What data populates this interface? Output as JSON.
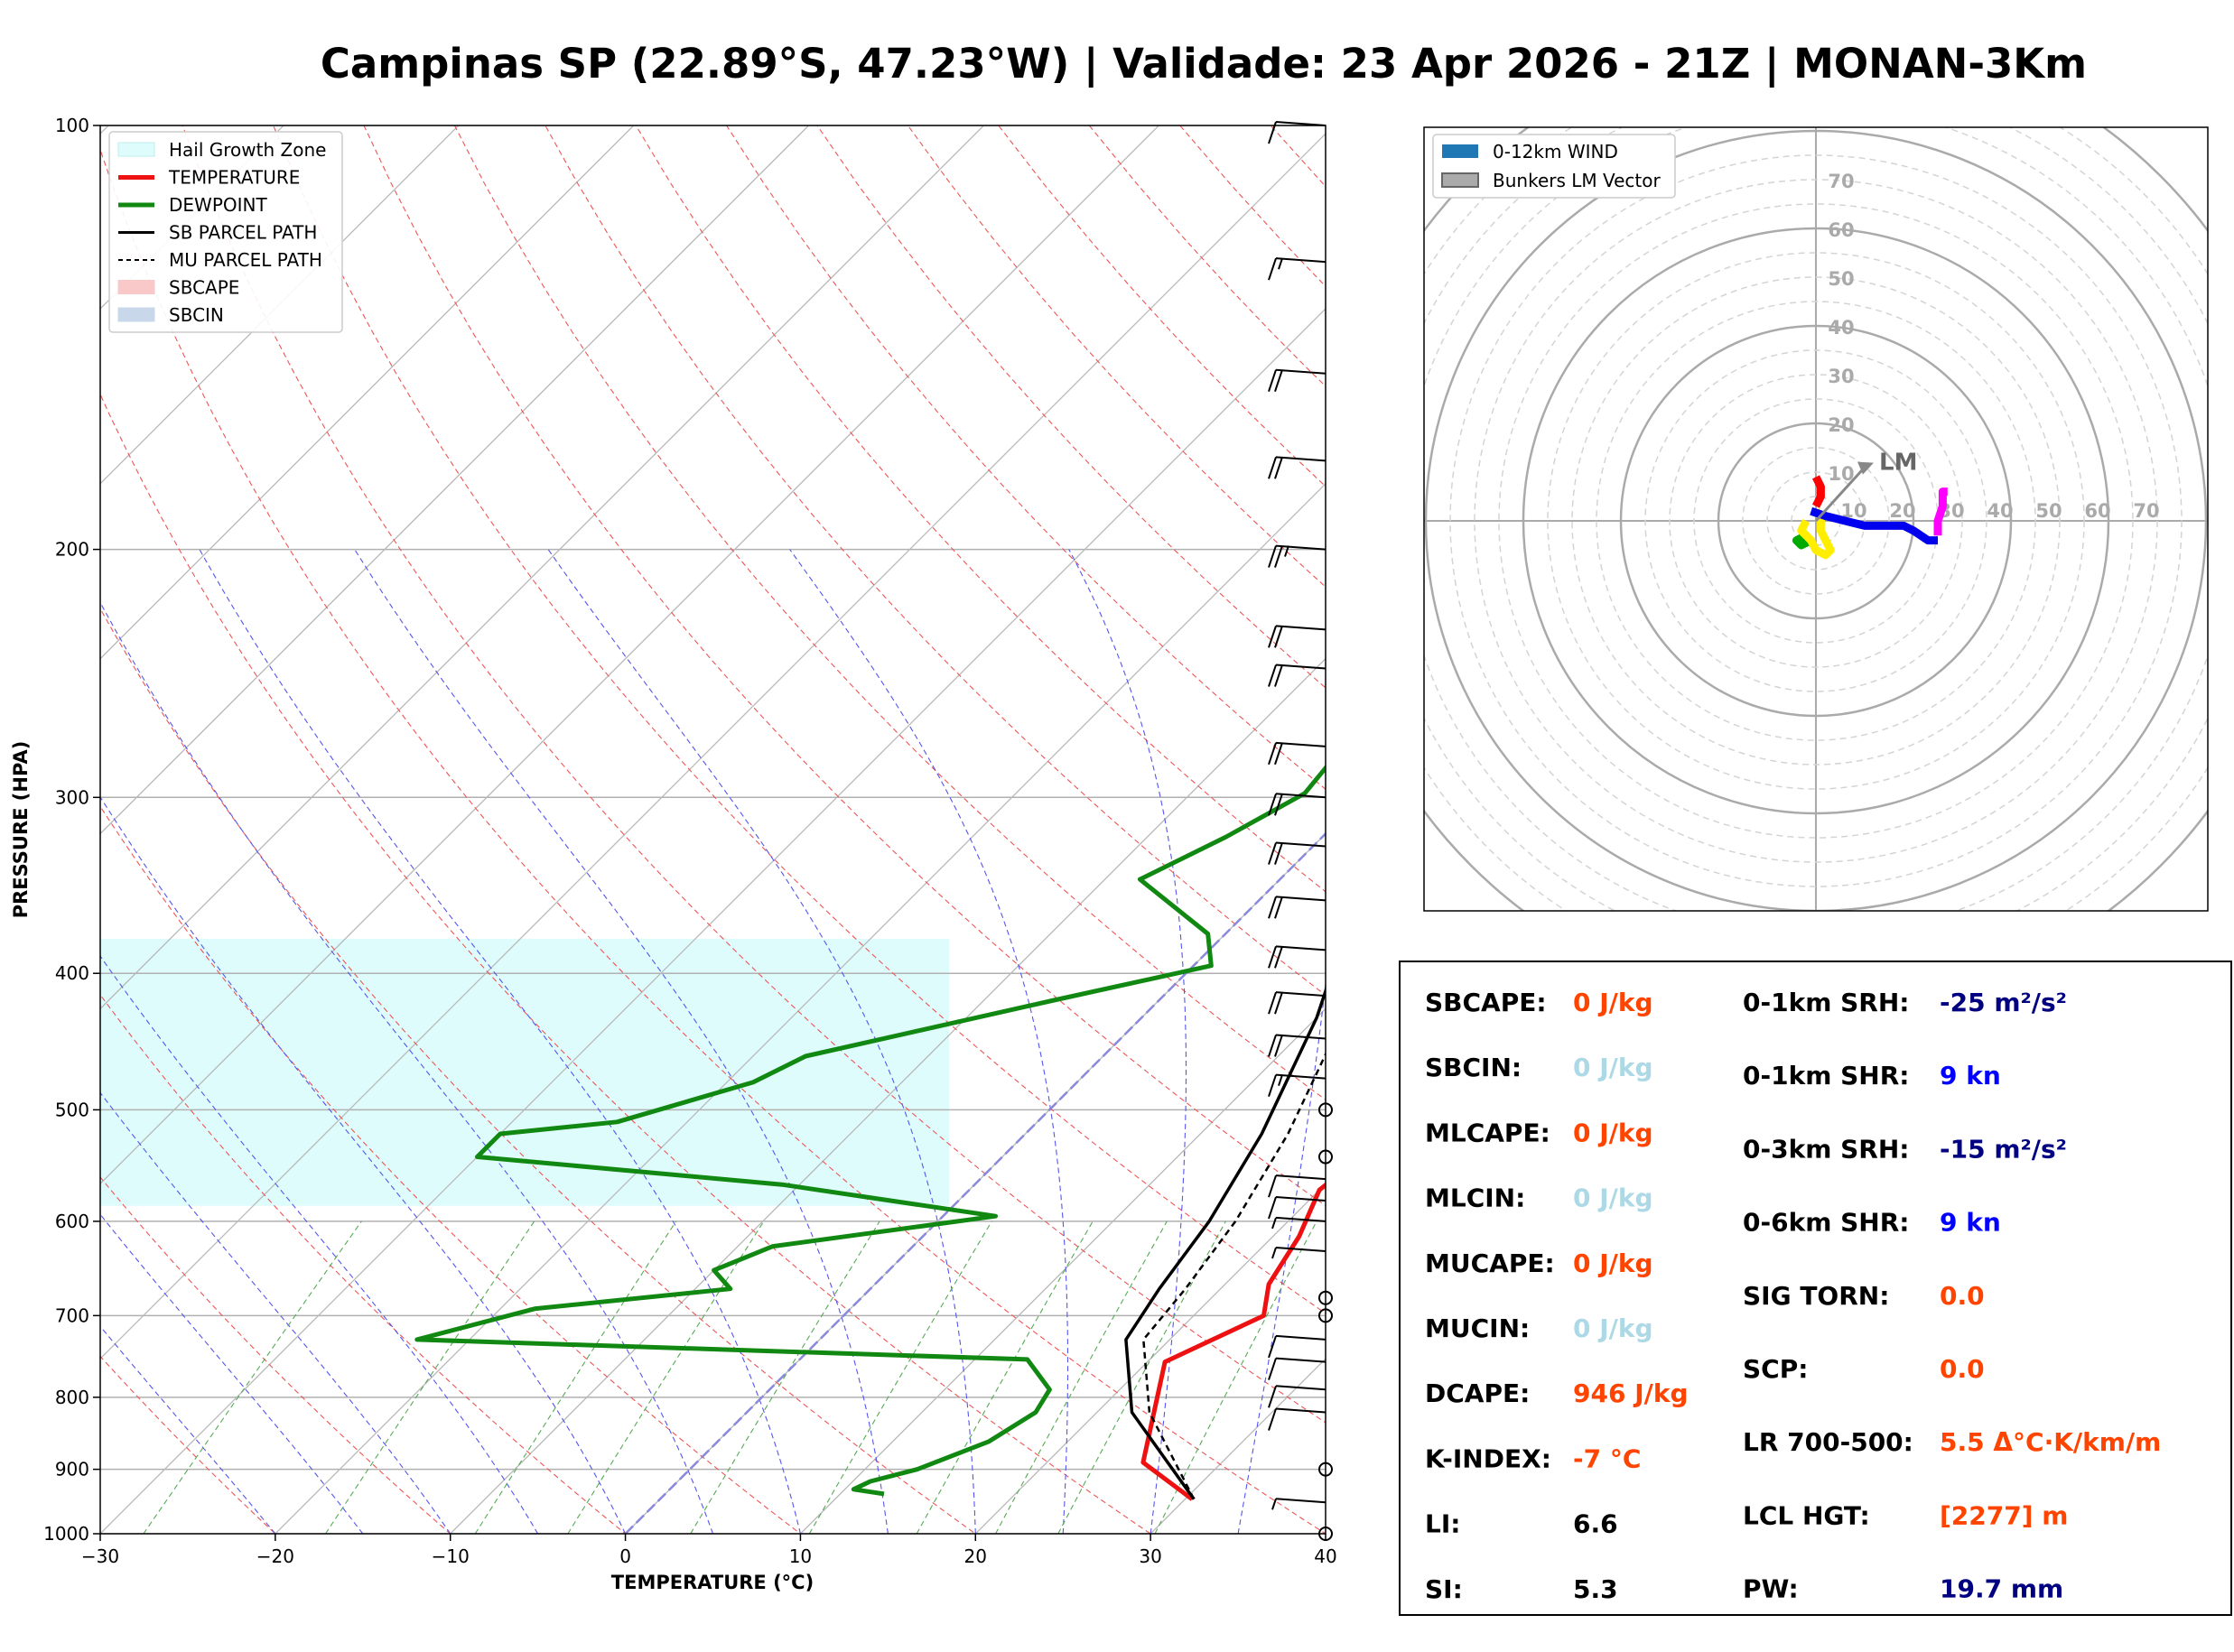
{
  "chart_data": [
    {
      "type": "line",
      "title": "Campinas SP (22.89°S, 47.23°W) | Validade: 23 Apr 2026 - 21Z | MONAN-3Km",
      "xlabel": "TEMPERATURE (°C)",
      "ylabel": "PRESSURE (HPA)",
      "xlim": [
        -30,
        40
      ],
      "ylim": [
        1000,
        100
      ],
      "y_scale": "log",
      "skew": true,
      "x_ticks": [
        "−30",
        "−20",
        "−10",
        "0",
        "10",
        "20",
        "30",
        "40"
      ],
      "y_ticks": [
        "100",
        "200",
        "300",
        "400",
        "500",
        "600",
        "700",
        "800",
        "900",
        "1000"
      ],
      "legend_position": "top-left",
      "legend": [
        "Hail Growth Zone",
        "TEMPERATURE",
        "DEWPOINT",
        "SB PARCEL PATH",
        "MU PARCEL PATH",
        "SBCAPE",
        "SBCIN"
      ],
      "colors": {
        "temperature": "#ee1111",
        "dewpoint": "#118811",
        "sb_parcel": "#000000",
        "mu_parcel": "#000000",
        "hail_zone": "#dffcfc",
        "sbcape": "#f9c8c8",
        "sbcin": "#c8d8ea",
        "dry_adiabat": "#ee5555",
        "moist_adiabat": "#5555ee",
        "mixing_ratio": "#55aa55",
        "freezing_isotherm": "#8888dd"
      },
      "hail_growth_zone_pressure": [
        378,
        585
      ],
      "series": [
        {
          "name": "TEMPERATURE",
          "points": [
            [
              30.4,
              945
            ],
            [
              25.5,
              890
            ],
            [
              21.0,
              755
            ],
            [
              24.0,
              700
            ],
            [
              22.5,
              665
            ],
            [
              21.5,
              615
            ],
            [
              20.0,
              570
            ],
            [
              20.5,
              540
            ],
            [
              21.0,
              500
            ],
            [
              17.5,
              440
            ],
            [
              14.0,
              380
            ],
            [
              12.5,
              350
            ],
            [
              9.0,
              305
            ],
            [
              1.5,
              255
            ],
            [
              -2.5,
              225
            ],
            [
              -5.0,
              195
            ],
            [
              -8.0,
              165
            ],
            [
              -11.0,
              140
            ],
            [
              -13.5,
              123
            ],
            [
              -13.0,
              110
            ],
            [
              -11.5,
              100
            ]
          ]
        },
        {
          "name": "DEWPOINT",
          "points": [
            [
              12.5,
              937
            ],
            [
              10.5,
              930
            ],
            [
              11.0,
              918
            ],
            [
              13.0,
              900
            ],
            [
              15.5,
              860
            ],
            [
              16.5,
              820
            ],
            [
              16.0,
              790
            ],
            [
              13.0,
              752
            ],
            [
              -23.0,
              728
            ],
            [
              -18.0,
              692
            ],
            [
              -8.0,
              670
            ],
            [
              -10.0,
              650
            ],
            [
              -8.0,
              625
            ],
            [
              3.0,
              595
            ],
            [
              -11.0,
              565
            ],
            [
              -30.0,
              540
            ],
            [
              -30.0,
              520
            ],
            [
              -24.0,
              510
            ],
            [
              -18.5,
              478
            ],
            [
              -17.0,
              458
            ],
            [
              -6.0,
              418
            ],
            [
              1.0,
              395
            ],
            [
              -1.0,
              375
            ],
            [
              -8.0,
              343
            ],
            [
              -5.5,
              320
            ],
            [
              -3.5,
              298
            ],
            [
              -4.0,
              275
            ],
            [
              -4.0,
              255
            ],
            [
              -8.0,
              232
            ],
            [
              -11.5,
              208
            ],
            [
              -13.0,
              188
            ],
            [
              -13.0,
              172
            ],
            [
              -12.0,
              160
            ],
            [
              -11.0,
              148
            ],
            [
              -10.0,
              133
            ],
            [
              -11.5,
              120
            ],
            [
              -11.5,
              100
            ]
          ]
        },
        {
          "name": "SB PARCEL PATH",
          "points": [
            [
              30.5,
              945
            ],
            [
              22.0,
              820
            ],
            [
              17.5,
              728
            ],
            [
              16.5,
              670
            ],
            [
              15.5,
              600
            ],
            [
              13.5,
              520
            ],
            [
              10.0,
              430
            ],
            [
              6.5,
              370
            ],
            [
              1.5,
              310
            ],
            [
              -4.5,
              255
            ],
            [
              -11.0,
              210
            ],
            [
              -18.0,
              170
            ],
            [
              -23.0,
              140
            ],
            [
              -27.0,
              118
            ],
            [
              -30.0,
              105
            ]
          ]
        },
        {
          "name": "MU PARCEL PATH",
          "points": [
            [
              30.5,
              945
            ],
            [
              23.0,
              820
            ],
            [
              18.5,
              728
            ],
            [
              18.0,
              670
            ],
            [
              17.0,
              600
            ],
            [
              15.0,
              520
            ],
            [
              11.5,
              430
            ],
            [
              8.0,
              370
            ],
            [
              3.0,
              310
            ],
            [
              -3.0,
              255
            ],
            [
              -9.5,
              210
            ],
            [
              -16.5,
              170
            ],
            [
              -21.5,
              140
            ],
            [
              -25.5,
              118
            ],
            [
              -28.5,
              105
            ]
          ]
        }
      ],
      "wind_barbs": {
        "pressure": [
          100,
          125,
          150,
          173,
          200,
          228,
          243,
          276,
          300,
          325,
          355,
          385,
          415,
          445,
          475,
          500,
          540,
          560,
          580,
          600,
          630,
          680,
          700,
          728,
          755,
          790,
          820,
          900,
          950,
          1000
        ],
        "speed_kn": [
          10,
          15,
          20,
          20,
          25,
          20,
          20,
          20,
          20,
          20,
          20,
          20,
          20,
          20,
          15,
          0,
          0,
          10,
          10,
          5,
          5,
          0,
          0,
          10,
          10,
          10,
          10,
          0,
          5,
          0
        ]
      }
    },
    {
      "type": "line",
      "title": "",
      "legend": [
        "0-12km WIND",
        "Bunkers LM Vector"
      ],
      "legend_position": "top-left",
      "rings": [
        10,
        20,
        30,
        40,
        50,
        60,
        70
      ],
      "ring_labels": [
        "10",
        "20",
        "30",
        "40",
        "50",
        "60",
        "70"
      ],
      "lm_label": "LM",
      "lm_vector": [
        10,
        5
      ],
      "colors": {
        "wind_legend": "#1f77b4",
        "lm_vector": "#888888",
        "rings": "#aaaaaa"
      },
      "series": [
        {
          "color": "#00aa00",
          "points": [
            [
              -2,
              -3
            ],
            [
              -4,
              -4
            ],
            [
              -3,
              -5
            ],
            [
              -1,
              -4
            ]
          ]
        },
        {
          "color": "#ff0000",
          "points": [
            [
              0,
              3
            ],
            [
              1,
              5
            ],
            [
              1,
              7
            ],
            [
              0,
              9
            ]
          ]
        },
        {
          "color": "#ffee00",
          "points": [
            [
              -2,
              0
            ],
            [
              -3,
              -2
            ],
            [
              -1,
              -4
            ],
            [
              0,
              -6
            ],
            [
              2,
              -7
            ],
            [
              3,
              -6
            ],
            [
              2,
              -4
            ],
            [
              1,
              -2
            ],
            [
              1,
              1
            ],
            [
              0,
              2
            ]
          ]
        },
        {
          "color": "#0000ee",
          "points": [
            [
              -1,
              2
            ],
            [
              2,
              1
            ],
            [
              6,
              0
            ],
            [
              10,
              -1
            ],
            [
              15,
              -1
            ],
            [
              18,
              -1
            ],
            [
              20,
              -2
            ],
            [
              23,
              -4
            ],
            [
              25,
              -4
            ]
          ]
        },
        {
          "color": "#ff00ff",
          "points": [
            [
              25,
              -3
            ],
            [
              25,
              0
            ],
            [
              26,
              3
            ],
            [
              26,
              5
            ],
            [
              26,
              6
            ],
            [
              27,
              6
            ]
          ]
        }
      ]
    }
  ],
  "stats": {
    "left": [
      {
        "label": "SBCAPE:",
        "value": "0 J/kg",
        "color": "#ff4400"
      },
      {
        "label": "SBCIN:",
        "value": "0 J/kg",
        "color": "#add8e6"
      },
      {
        "label": "MLCAPE:",
        "value": "0 J/kg",
        "color": "#ff4400"
      },
      {
        "label": "MLCIN:",
        "value": "0 J/kg",
        "color": "#add8e6"
      },
      {
        "label": "MUCAPE:",
        "value": "0 J/kg",
        "color": "#ff4400"
      },
      {
        "label": "MUCIN:",
        "value": "0 J/kg",
        "color": "#add8e6"
      },
      {
        "label": "DCAPE:",
        "value": "946 J/kg",
        "color": "#ff4400"
      },
      {
        "label": "K-INDEX:",
        "value": "-7 °C",
        "color": "#ff4400"
      },
      {
        "label": "LI:",
        "value": "6.6",
        "color": "#000000"
      },
      {
        "label": "SI:",
        "value": "5.3",
        "color": "#000000"
      }
    ],
    "right": [
      {
        "label": "0-1km SRH:",
        "value": "-25 m²/s²",
        "color": "#000080"
      },
      {
        "label": "0-1km SHR:",
        "value": "9 kn",
        "color": "#0000ff"
      },
      {
        "label": "0-3km SRH:",
        "value": "-15 m²/s²",
        "color": "#000080"
      },
      {
        "label": "0-6km SHR:",
        "value": "9 kn",
        "color": "#0000ff"
      },
      {
        "label": "SIG TORN:",
        "value": "0.0",
        "color": "#ff4400"
      },
      {
        "label": "SCP:",
        "value": "0.0",
        "color": "#ff4400"
      },
      {
        "label": "LR 700-500:",
        "value": "5.5 Δ°C·K/km/m",
        "color": "#ff4400"
      },
      {
        "label": "LCL HGT:",
        "value": "[2277] m",
        "color": "#ff4400"
      },
      {
        "label": "PW:",
        "value": "19.7 mm",
        "color": "#000080"
      }
    ]
  }
}
